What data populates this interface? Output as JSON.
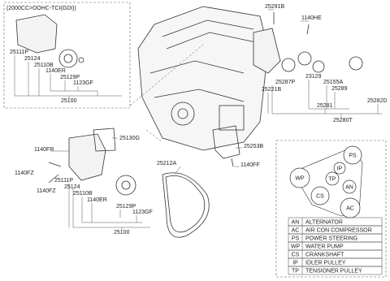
{
  "header": {
    "spec": "(2000CC>DOHC-TCI(GDI))"
  },
  "callouts": [
    "25111P",
    "25124",
    "25110B",
    "1140ER",
    "25129P",
    "1123GF",
    "25100",
    "25130G",
    "1140FR",
    "1140FZ",
    "1140FZ",
    "25111P",
    "25124",
    "25110B",
    "1140ER",
    "25129P",
    "1123GF",
    "25100",
    "25212A",
    "25253B",
    "1140FF",
    "25291B",
    "1140HE",
    "25287P",
    "25221B",
    "23129",
    "25155A",
    "25289",
    "25281",
    "25282D",
    "25280T"
  ],
  "legend": {
    "circles": [
      "PS",
      "IP",
      "WP",
      "TP",
      "AN",
      "CS",
      "AC"
    ],
    "table": {
      "rows": [
        [
          "AN",
          "ALTERNATOR"
        ],
        [
          "AC",
          "AIR CON COMPRESSOR"
        ],
        [
          "PS",
          "POWER STEERING"
        ],
        [
          "WP",
          "WATER PUMP"
        ],
        [
          "CS",
          "CRANKSHAFT"
        ],
        [
          "IP",
          "IDLER PULLEY"
        ],
        [
          "TP",
          "TENSIONER PULLEY"
        ]
      ]
    }
  }
}
